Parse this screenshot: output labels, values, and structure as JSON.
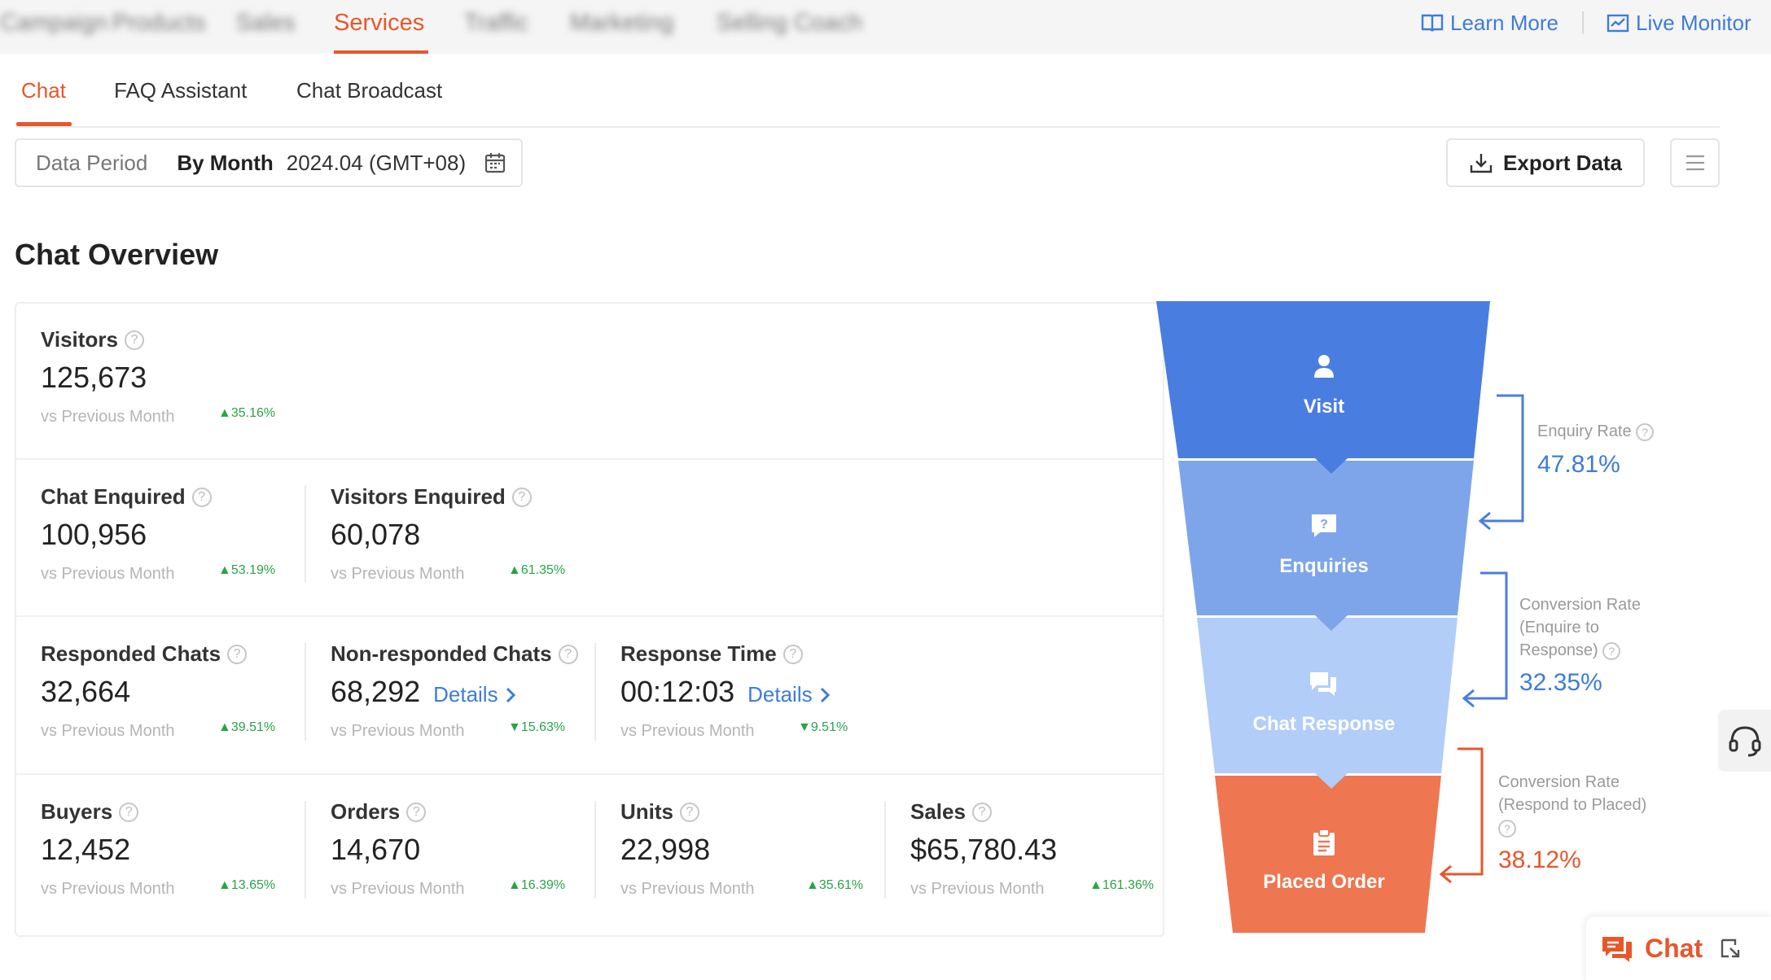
{
  "top_nav": {
    "tabs": [
      "Services"
    ],
    "learn_more": "Learn More",
    "live_monitor": "Live Monitor"
  },
  "sub_tabs": [
    "Chat",
    "FAQ Assistant",
    "Chat Broadcast"
  ],
  "period": {
    "label": "Data Period",
    "mode": "By Month",
    "value": "2024.04 (GMT+08)"
  },
  "export_label": "Export Data",
  "section_title": "Chat Overview",
  "compare_label": "vs Previous Month",
  "details_label": "Details",
  "metrics": {
    "visitors": {
      "name": "Visitors",
      "value": "125,673",
      "change": "▲35.16%"
    },
    "chat_enquired": {
      "name": "Chat Enquired",
      "value": "100,956",
      "change": "▲53.19%"
    },
    "visitors_enquired": {
      "name": "Visitors Enquired",
      "value": "60,078",
      "change": "▲61.35%"
    },
    "responded_chats": {
      "name": "Responded Chats",
      "value": "32,664",
      "change": "▲39.51%"
    },
    "non_responded_chats": {
      "name": "Non-responded Chats",
      "value": "68,292",
      "change": "▼15.63%"
    },
    "response_time": {
      "name": "Response Time",
      "value": "00:12:03",
      "change": "▼9.51%"
    },
    "buyers": {
      "name": "Buyers",
      "value": "12,452",
      "change": "▲13.65%"
    },
    "orders": {
      "name": "Orders",
      "value": "14,670",
      "change": "▲16.39%"
    },
    "units": {
      "name": "Units",
      "value": "22,998",
      "change": "▲35.61%"
    },
    "sales": {
      "name": "Sales",
      "value": "$65,780.43",
      "change": "▲161.36%"
    }
  },
  "funnel": {
    "stages": [
      "Visit",
      "Enquiries",
      "Chat Response",
      "Placed Order"
    ],
    "colors": [
      "#4a7de0",
      "#7ea5ea",
      "#b2cdf7",
      "#ee7650"
    ]
  },
  "rates": {
    "enquiry": {
      "label": "Enquiry Rate",
      "value": "47.81%"
    },
    "conv_response": {
      "label": "Conversion Rate (Enquire to Response)",
      "value": "32.35%"
    },
    "conv_placed": {
      "label": "Conversion Rate (Respond to Placed)",
      "value": "38.12%"
    }
  },
  "chat_widget": {
    "label": "Chat"
  }
}
